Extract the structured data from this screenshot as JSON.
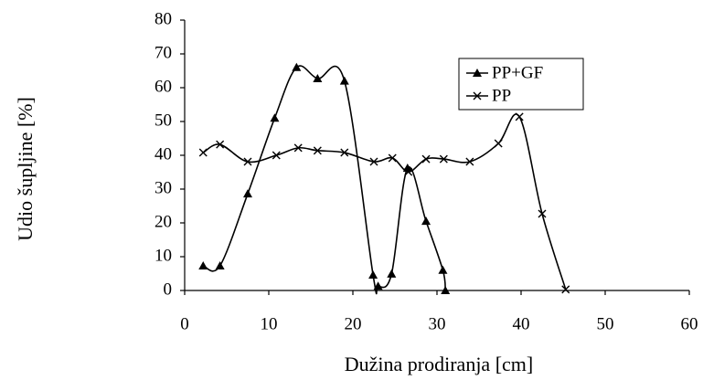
{
  "chart_data": {
    "type": "line",
    "x_label": "Dužina prodiranja [cm]",
    "y_label": "Udio šupljine [%]",
    "xlim": [
      0,
      60
    ],
    "xticks": [
      0,
      10,
      20,
      30,
      40,
      50,
      60
    ],
    "ylim": [
      0,
      80
    ],
    "yticks": [
      0,
      10,
      20,
      30,
      40,
      50,
      60,
      70,
      80
    ],
    "legend": "upper right",
    "smooth": true,
    "series": [
      {
        "name": "PP+GF",
        "color": "#000000",
        "marker": "triangle",
        "x": [
          2.2,
          4.2,
          7.5,
          10.7,
          13.3,
          15.8,
          19,
          22.4,
          23,
          24.6,
          26.5,
          28.7,
          30.7,
          31
        ],
        "values": [
          7.3,
          7.3,
          28.6,
          51,
          66,
          62.7,
          62,
          4.6,
          1.3,
          4.9,
          36.2,
          20.5,
          6,
          0
        ]
      },
      {
        "name": "PP",
        "color": "#000000",
        "marker": "x",
        "x": [
          2.2,
          4.2,
          7.5,
          10.9,
          13.5,
          15.8,
          19,
          22.5,
          24.7,
          26.6,
          28.7,
          30.8,
          33.9,
          37.3,
          39.8,
          42.5,
          45.3
        ],
        "values": [
          40.8,
          43.2,
          38.1,
          40,
          42.2,
          41.4,
          40.8,
          38.1,
          39.2,
          35.1,
          38.9,
          38.9,
          38.1,
          43.5,
          51.4,
          22.7,
          0.3
        ]
      }
    ]
  }
}
